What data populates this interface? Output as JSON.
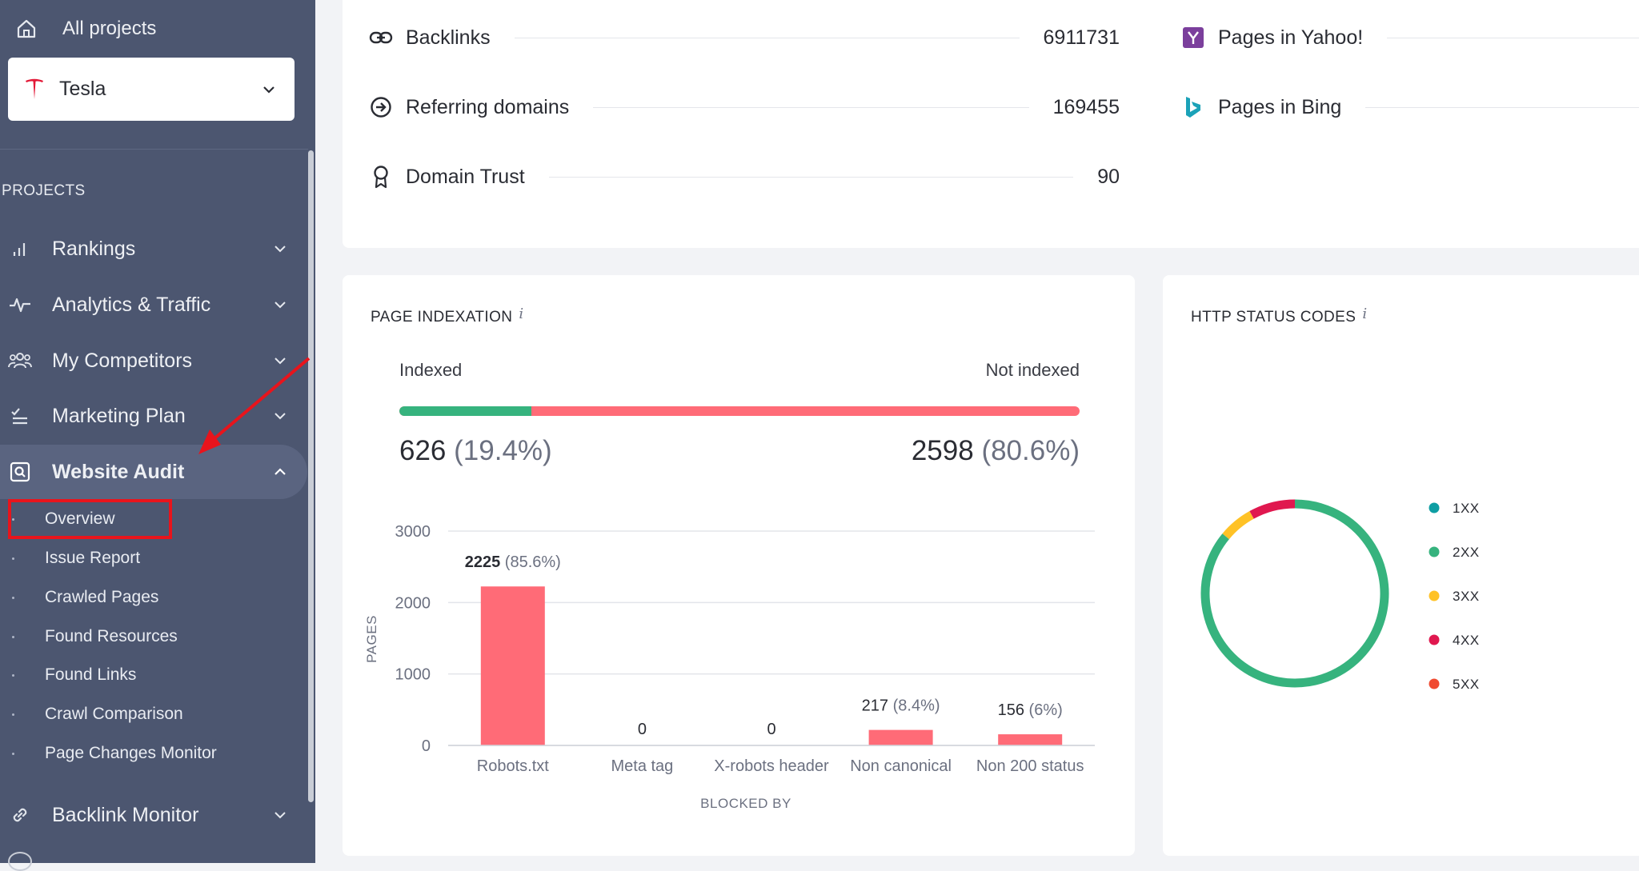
{
  "sidebar": {
    "all_projects": "All projects",
    "project_name": "Tesla",
    "section_label": "PROJECTS",
    "nav": [
      {
        "label": "Rankings",
        "icon": "bar-chart-icon"
      },
      {
        "label": "Analytics & Traffic",
        "icon": "pulse-icon"
      },
      {
        "label": "My Competitors",
        "icon": "users-icon"
      },
      {
        "label": "Marketing Plan",
        "icon": "checklist-icon"
      },
      {
        "label": "Website Audit",
        "icon": "audit-icon",
        "expanded": true
      },
      {
        "label": "Backlink Monitor",
        "icon": "link-icon"
      }
    ],
    "sub_items": [
      {
        "label": "Overview",
        "selected": true
      },
      {
        "label": "Issue Report"
      },
      {
        "label": "Crawled Pages"
      },
      {
        "label": "Found Resources"
      },
      {
        "label": "Found Links"
      },
      {
        "label": "Crawl Comparison"
      },
      {
        "label": "Page Changes Monitor"
      }
    ]
  },
  "metrics": {
    "backlinks": {
      "label": "Backlinks",
      "value": "6911731"
    },
    "referring_domains": {
      "label": "Referring domains",
      "value": "169455"
    },
    "domain_trust": {
      "label": "Domain Trust",
      "value": "90"
    },
    "pages_yahoo": {
      "label": "Pages in Yahoo!"
    },
    "pages_bing": {
      "label": "Pages in Bing"
    }
  },
  "indexation": {
    "title": "PAGE INDEXATION",
    "info": "i",
    "indexed_label": "Indexed",
    "not_indexed_label": "Not indexed",
    "indexed_count": "626",
    "indexed_pct": "(19.4%)",
    "not_indexed_count": "2598",
    "not_indexed_pct": "(80.6%)",
    "indexed_fraction": 0.194
  },
  "http": {
    "title": "HTTP STATUS CODES",
    "info": "i"
  },
  "chart_data": [
    {
      "type": "bar",
      "title": "",
      "categories": [
        "Robots.txt",
        "Meta tag",
        "X-robots header",
        "Non canonical",
        "Non 200 status"
      ],
      "values": [
        2225,
        0,
        0,
        217,
        156
      ],
      "value_labels": [
        "2225",
        "0",
        "0",
        "217",
        "156"
      ],
      "pct_labels": [
        "(85.6%)",
        "",
        "",
        "(8.4%)",
        "(6%)"
      ],
      "yticks": [
        0,
        1000,
        2000,
        3000
      ],
      "ylim": [
        0,
        3000
      ],
      "ylabel": "PAGES",
      "xlabel": "BLOCKED BY",
      "color": "#ff6b77",
      "grid": true
    },
    {
      "type": "pie",
      "title": "",
      "categories": [
        "1XX",
        "2XX",
        "3XX",
        "4XX",
        "5XX"
      ],
      "values": [
        0,
        86,
        6,
        8,
        0
      ],
      "colors": [
        "#0e9ea3",
        "#36b37e",
        "#ffc226",
        "#e0184f",
        "#f04a30"
      ],
      "legend": "right"
    }
  ]
}
